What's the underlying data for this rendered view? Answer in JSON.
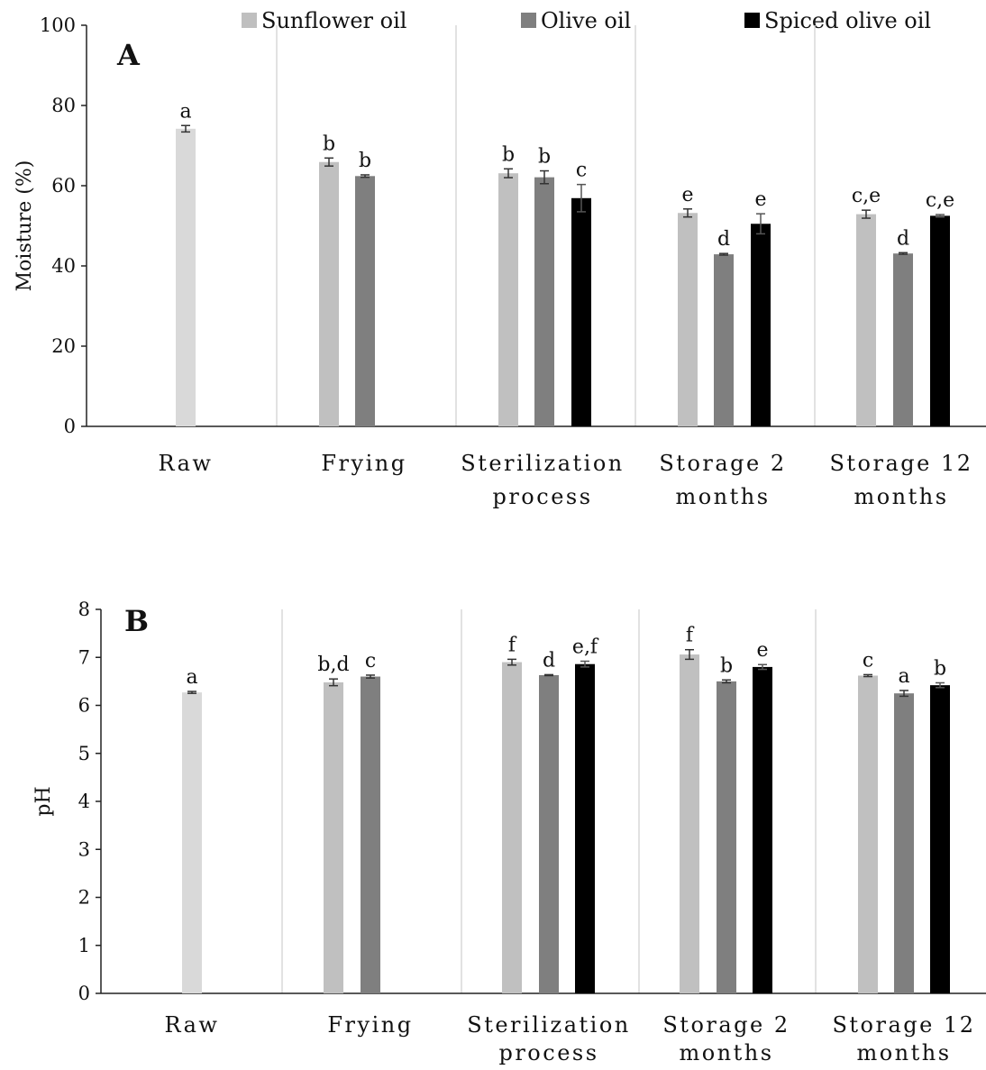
{
  "legend": {
    "items": [
      {
        "label": "Sunflower oil",
        "color": "#bfbfbf"
      },
      {
        "label": "Olive oil",
        "color": "#7f7f7f"
      },
      {
        "label": "Spiced olive oil",
        "color": "#000000"
      }
    ]
  },
  "chart_data": [
    {
      "type": "bar",
      "panel_label": "A",
      "ylabel": "Moisture (%)",
      "ylim": [
        0,
        100
      ],
      "yticks": [
        "0",
        "20",
        "40",
        "60",
        "80",
        "100"
      ],
      "categories": [
        [
          "Raw"
        ],
        [
          "Frying"
        ],
        [
          "Sterilization",
          "process"
        ],
        [
          "Storage 2",
          "months"
        ],
        [
          "Storage 12",
          "months"
        ]
      ],
      "series": [
        {
          "name": "Sunflower oil",
          "color": "#c0c0c0",
          "values": [
            74.2,
            65.9,
            63.1,
            53.2,
            52.9
          ],
          "errors": [
            0.8,
            1.0,
            1.1,
            1.0,
            1.0
          ],
          "labels": [
            "a",
            "b",
            "b",
            "e",
            "c,e"
          ]
        },
        {
          "name": "Olive oil",
          "color": "#7f7f7f",
          "values": [
            null,
            62.4,
            62.1,
            42.9,
            43.1
          ],
          "errors": [
            null,
            0.3,
            1.6,
            0.2,
            0.2
          ],
          "labels": [
            "",
            "b",
            "b",
            "d",
            "d"
          ]
        },
        {
          "name": "Spiced olive oil",
          "color": "#000000",
          "values": [
            null,
            null,
            56.9,
            50.5,
            52.5
          ],
          "errors": [
            null,
            null,
            3.4,
            2.5,
            0.3
          ],
          "labels": [
            "",
            "",
            "c",
            "e",
            "c,e"
          ]
        }
      ],
      "grid": false,
      "legend_position": "top"
    },
    {
      "type": "bar",
      "panel_label": "B",
      "ylabel": "pH",
      "ylim": [
        0,
        8
      ],
      "yticks": [
        "0",
        "1",
        "2",
        "3",
        "4",
        "5",
        "6",
        "7",
        "8"
      ],
      "categories": [
        [
          "Raw"
        ],
        [
          "Frying"
        ],
        [
          "Sterilization",
          "process"
        ],
        [
          "Storage 2",
          "months"
        ],
        [
          "Storage 12",
          "months"
        ]
      ],
      "series": [
        {
          "name": "Sunflower oil",
          "color": "#c0c0c0",
          "values": [
            6.27,
            6.48,
            6.9,
            7.06,
            6.62
          ],
          "errors": [
            0.02,
            0.07,
            0.06,
            0.1,
            0.02
          ],
          "labels": [
            "a",
            "b,d",
            "f",
            "f",
            "c"
          ]
        },
        {
          "name": "Olive oil",
          "color": "#7f7f7f",
          "values": [
            null,
            6.6,
            6.63,
            6.5,
            6.25
          ],
          "errors": [
            null,
            0.03,
            0.01,
            0.03,
            0.06
          ],
          "labels": [
            "",
            "c",
            "d",
            "b",
            "a"
          ]
        },
        {
          "name": "Spiced olive oil",
          "color": "#000000",
          "values": [
            null,
            null,
            6.86,
            6.8,
            6.42
          ],
          "errors": [
            null,
            null,
            0.06,
            0.05,
            0.05
          ],
          "labels": [
            "",
            "",
            "e,f",
            "e",
            "b"
          ]
        }
      ],
      "grid": false
    }
  ]
}
